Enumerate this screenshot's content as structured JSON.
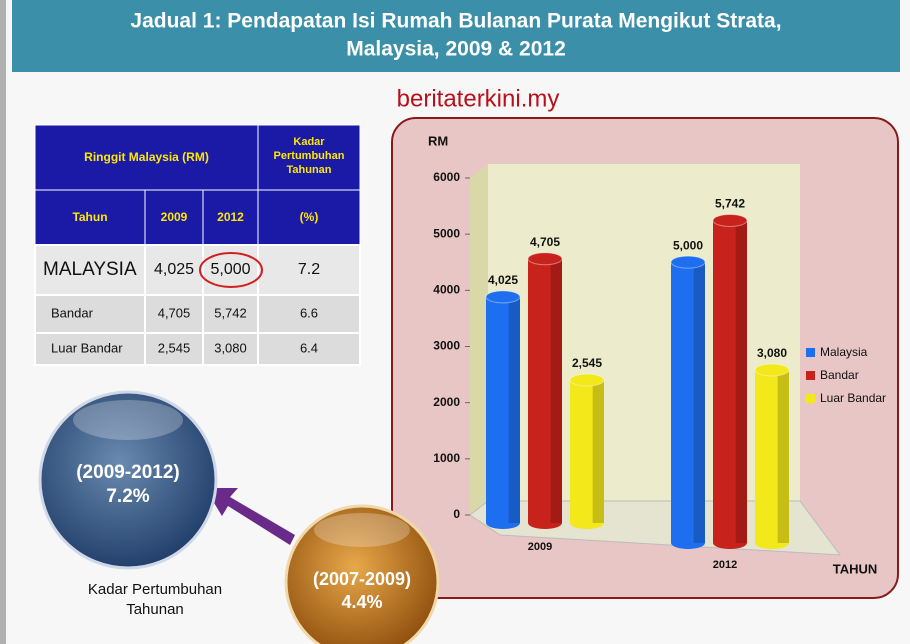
{
  "header": {
    "title_lines": [
      "Jadual 1: Pendapatan Isi Rumah Bulanan Purata Mengikut Strata,",
      "Malaysia, 2009 & 2012"
    ]
  },
  "watermark": "beritaterkini.my",
  "table": {
    "header_1": [
      "Ringgit Malaysia (RM)",
      [
        "Kadar",
        "Pertumbuhan",
        "Tahunan"
      ]
    ],
    "header_2": [
      "Tahun",
      "2009",
      "2012",
      "(%)"
    ],
    "rows": [
      [
        "MALAYSIA",
        "4,025",
        "5,000",
        "7.2"
      ],
      [
        "Bandar",
        "4,705",
        "5,742",
        "6.6"
      ],
      [
        "Luar Bandar",
        "2,545",
        "3,080",
        "6.4"
      ]
    ]
  },
  "chart_data": {
    "type": "bar",
    "y_axis_label": "RM",
    "x_axis_label": "TAHUN",
    "categories": [
      "2009",
      "2012"
    ],
    "series": [
      {
        "name": "Malaysia",
        "color": "#1e6ff0",
        "values": [
          4025,
          5000
        ],
        "value_labels": [
          "4,025",
          "5,000"
        ]
      },
      {
        "name": "Bandar",
        "color": "#c8221c",
        "values": [
          4705,
          5742
        ],
        "value_labels": [
          "4,705",
          "5,742"
        ]
      },
      {
        "name": "Luar Bandar",
        "color": "#f2e81a",
        "values": [
          2545,
          3080
        ],
        "value_labels": [
          "2,545",
          "3,080"
        ]
      }
    ],
    "ylim": [
      0,
      6000
    ],
    "yticks": [
      0,
      1000,
      2000,
      3000,
      4000,
      5000,
      6000
    ],
    "legend": "right"
  },
  "circles": [
    {
      "period": "(2009-2012)",
      "rate": "7.2%"
    },
    {
      "period": "(2007-2009)",
      "rate": "4.4%"
    }
  ],
  "caption": [
    "Kadar Pertumbuhan",
    "Tahunan"
  ]
}
